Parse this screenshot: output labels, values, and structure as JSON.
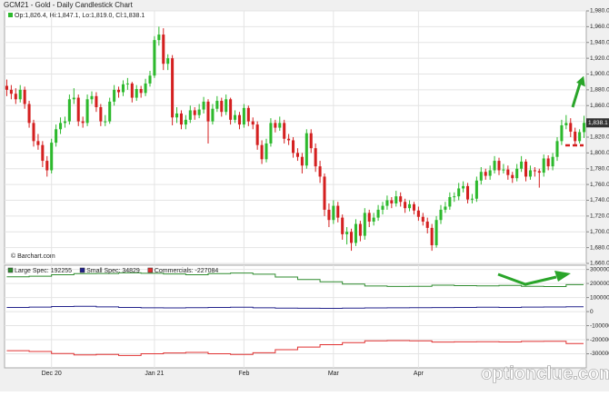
{
  "chart_data": [
    {
      "type": "candlestick",
      "title": "GCM21 - Gold - Daily Candlestick Chart",
      "subtitle": "Op:1,826.4, Hi:1,847.1, Lo:1,819.0, Cl:1,838.1",
      "source": "© Barchart.com",
      "watermark": "optionclue.com",
      "up_color": "#2db92d",
      "down_color": "#d42020",
      "last_label": {
        "value": 1838.1,
        "label": "1,838.1"
      },
      "xlim": [
        -0.5,
        129.5
      ],
      "xticks": [
        {
          "value": 10,
          "label": "Dec 20"
        },
        {
          "value": 33,
          "label": "Jan 21"
        },
        {
          "value": 53,
          "label": "Feb"
        },
        {
          "value": 73,
          "label": "Mar"
        },
        {
          "value": 92,
          "label": "Apr"
        }
      ],
      "ylim": [
        1660,
        1980
      ],
      "yticks": [
        {
          "value": 1660,
          "label": "1,660.0"
        },
        {
          "value": 1680,
          "label": "1,680.0"
        },
        {
          "value": 1700,
          "label": "1,700.0"
        },
        {
          "value": 1720,
          "label": "1,720.0"
        },
        {
          "value": 1740,
          "label": "1,740.0"
        },
        {
          "value": 1760,
          "label": "1,760.0"
        },
        {
          "value": 1780,
          "label": "1,780.0"
        },
        {
          "value": 1800,
          "label": "1,800.0"
        },
        {
          "value": 1820,
          "label": "1,820.0"
        },
        {
          "value": 1840,
          "label": "1,840.0"
        },
        {
          "value": 1860,
          "label": "1,860.0"
        },
        {
          "value": 1880,
          "label": "1,880.0"
        },
        {
          "value": 1900,
          "label": "1,900.0"
        },
        {
          "value": 1920,
          "label": "1,920.0"
        },
        {
          "value": 1940,
          "label": "1,940.0"
        },
        {
          "value": 1960,
          "label": "1,960.0"
        },
        {
          "value": 1980,
          "label": "1,980.0"
        }
      ],
      "grid": true,
      "ohlc": [
        [
          1885,
          1893,
          1872,
          1880
        ],
        [
          1880,
          1886,
          1868,
          1875
        ],
        [
          1875,
          1882,
          1862,
          1868
        ],
        [
          1868,
          1886,
          1864,
          1880
        ],
        [
          1880,
          1884,
          1856,
          1862
        ],
        [
          1862,
          1866,
          1832,
          1838
        ],
        [
          1838,
          1842,
          1808,
          1815
        ],
        [
          1815,
          1824,
          1804,
          1810
        ],
        [
          1810,
          1815,
          1782,
          1790
        ],
        [
          1790,
          1796,
          1770,
          1778
        ],
        [
          1778,
          1818,
          1774,
          1813
        ],
        [
          1813,
          1836,
          1808,
          1830
        ],
        [
          1830,
          1845,
          1824,
          1838
        ],
        [
          1838,
          1846,
          1832,
          1840
        ],
        [
          1840,
          1874,
          1836,
          1868
        ],
        [
          1868,
          1882,
          1862,
          1870
        ],
        [
          1870,
          1874,
          1834,
          1840
        ],
        [
          1840,
          1846,
          1832,
          1838
        ],
        [
          1838,
          1874,
          1834,
          1868
        ],
        [
          1868,
          1878,
          1862,
          1872
        ],
        [
          1872,
          1877,
          1852,
          1858
        ],
        [
          1858,
          1862,
          1834,
          1840
        ],
        [
          1840,
          1848,
          1834,
          1840
        ],
        [
          1840,
          1870,
          1837,
          1865
        ],
        [
          1865,
          1886,
          1860,
          1880
        ],
        [
          1880,
          1884,
          1870,
          1877
        ],
        [
          1877,
          1892,
          1872,
          1887
        ],
        [
          1887,
          1895,
          1880,
          1888
        ],
        [
          1888,
          1890,
          1864,
          1870
        ],
        [
          1870,
          1886,
          1866,
          1881
        ],
        [
          1881,
          1885,
          1870,
          1876
        ],
        [
          1876,
          1894,
          1872,
          1888
        ],
        [
          1888,
          1904,
          1884,
          1898
        ],
        [
          1898,
          1948,
          1895,
          1943
        ],
        [
          1943,
          1960,
          1936,
          1950
        ],
        [
          1950,
          1958,
          1905,
          1913
        ],
        [
          1913,
          1925,
          1905,
          1920
        ],
        [
          1920,
          1924,
          1835,
          1845
        ],
        [
          1845,
          1858,
          1838,
          1850
        ],
        [
          1850,
          1854,
          1830,
          1836
        ],
        [
          1836,
          1848,
          1830,
          1842
        ],
        [
          1842,
          1860,
          1838,
          1854
        ],
        [
          1854,
          1858,
          1842,
          1848
        ],
        [
          1848,
          1862,
          1844,
          1855
        ],
        [
          1855,
          1871,
          1850,
          1865
        ],
        [
          1865,
          1868,
          1812,
          1840
        ],
        [
          1840,
          1862,
          1836,
          1856
        ],
        [
          1856,
          1872,
          1852,
          1866
        ],
        [
          1866,
          1870,
          1846,
          1852
        ],
        [
          1852,
          1874,
          1848,
          1868
        ],
        [
          1868,
          1870,
          1836,
          1842
        ],
        [
          1842,
          1854,
          1838,
          1848
        ],
        [
          1848,
          1852,
          1830,
          1836
        ],
        [
          1836,
          1862,
          1832,
          1857
        ],
        [
          1857,
          1860,
          1834,
          1840
        ],
        [
          1840,
          1845,
          1830,
          1836
        ],
        [
          1836,
          1840,
          1804,
          1810
        ],
        [
          1810,
          1816,
          1786,
          1792
        ],
        [
          1792,
          1818,
          1788,
          1812
        ],
        [
          1812,
          1844,
          1808,
          1838
        ],
        [
          1838,
          1842,
          1826,
          1832
        ],
        [
          1832,
          1846,
          1828,
          1838
        ],
        [
          1838,
          1842,
          1812,
          1818
        ],
        [
          1818,
          1824,
          1810,
          1816
        ],
        [
          1816,
          1820,
          1794,
          1800
        ],
        [
          1800,
          1806,
          1790,
          1795
        ],
        [
          1795,
          1800,
          1774,
          1784
        ],
        [
          1784,
          1830,
          1780,
          1825
        ],
        [
          1825,
          1830,
          1800,
          1806
        ],
        [
          1806,
          1812,
          1776,
          1783
        ],
        [
          1783,
          1790,
          1762,
          1770
        ],
        [
          1770,
          1774,
          1720,
          1728
        ],
        [
          1728,
          1736,
          1706,
          1715
        ],
        [
          1715,
          1740,
          1710,
          1733
        ],
        [
          1733,
          1738,
          1712,
          1718
        ],
        [
          1718,
          1722,
          1690,
          1697
        ],
        [
          1697,
          1706,
          1684,
          1700
        ],
        [
          1700,
          1704,
          1676,
          1686
        ],
        [
          1686,
          1716,
          1682,
          1710
        ],
        [
          1710,
          1714,
          1688,
          1695
        ],
        [
          1695,
          1730,
          1690,
          1724
        ],
        [
          1724,
          1728,
          1706,
          1713
        ],
        [
          1713,
          1724,
          1708,
          1718
        ],
        [
          1718,
          1734,
          1714,
          1728
        ],
        [
          1728,
          1738,
          1722,
          1733
        ],
        [
          1733,
          1746,
          1728,
          1740
        ],
        [
          1740,
          1744,
          1730,
          1736
        ],
        [
          1736,
          1752,
          1732,
          1745
        ],
        [
          1745,
          1750,
          1732,
          1738
        ],
        [
          1738,
          1742,
          1724,
          1730
        ],
        [
          1730,
          1740,
          1726,
          1735
        ],
        [
          1735,
          1738,
          1722,
          1727
        ],
        [
          1727,
          1732,
          1714,
          1719
        ],
        [
          1719,
          1724,
          1708,
          1713
        ],
        [
          1713,
          1718,
          1698,
          1705
        ],
        [
          1705,
          1710,
          1676,
          1683
        ],
        [
          1683,
          1720,
          1680,
          1715
        ],
        [
          1715,
          1734,
          1710,
          1728
        ],
        [
          1728,
          1738,
          1724,
          1732
        ],
        [
          1732,
          1750,
          1728,
          1744
        ],
        [
          1744,
          1750,
          1738,
          1745
        ],
        [
          1745,
          1762,
          1740,
          1755
        ],
        [
          1755,
          1764,
          1750,
          1758
        ],
        [
          1758,
          1762,
          1736,
          1741
        ],
        [
          1741,
          1748,
          1736,
          1742
        ],
        [
          1742,
          1770,
          1738,
          1765
        ],
        [
          1765,
          1782,
          1760,
          1776
        ],
        [
          1776,
          1780,
          1766,
          1771
        ],
        [
          1771,
          1784,
          1766,
          1778
        ],
        [
          1778,
          1796,
          1774,
          1790
        ],
        [
          1790,
          1794,
          1772,
          1778
        ],
        [
          1778,
          1786,
          1774,
          1779
        ],
        [
          1779,
          1784,
          1766,
          1772
        ],
        [
          1772,
          1776,
          1762,
          1768
        ],
        [
          1768,
          1786,
          1764,
          1780
        ],
        [
          1780,
          1796,
          1776,
          1789
        ],
        [
          1789,
          1792,
          1764,
          1770
        ],
        [
          1770,
          1784,
          1766,
          1778
        ],
        [
          1778,
          1782,
          1770,
          1777
        ],
        [
          1777,
          1780,
          1756,
          1775
        ],
        [
          1775,
          1798,
          1770,
          1793
        ],
        [
          1793,
          1797,
          1778,
          1783
        ],
        [
          1783,
          1800,
          1778,
          1795
        ],
        [
          1795,
          1820,
          1790,
          1815
        ],
        [
          1815,
          1842,
          1810,
          1835
        ],
        [
          1835,
          1848,
          1830,
          1838
        ],
        [
          1838,
          1844,
          1820,
          1827
        ],
        [
          1827,
          1832,
          1810,
          1815
        ],
        [
          1815,
          1830,
          1812,
          1826.4
        ],
        [
          1826.4,
          1847.1,
          1819,
          1838.1
        ]
      ]
    },
    {
      "type": "step",
      "x": [
        0,
        5,
        10,
        15,
        20,
        25,
        30,
        35,
        40,
        45,
        50,
        55,
        60,
        65,
        70,
        75,
        80,
        85,
        90,
        95,
        100,
        105,
        110,
        115,
        120,
        125
      ],
      "xlim": [
        -0.5,
        129.5
      ],
      "ylim": [
        -400000,
        330000
      ],
      "yticks": [
        300000,
        200000,
        100000,
        0,
        -100000,
        -200000,
        -300000
      ],
      "series": [
        {
          "name": "Large Spec: 192255",
          "color": "#2e8b2e",
          "values": [
            248000,
            252000,
            262000,
            270000,
            271000,
            276000,
            273000,
            268000,
            262000,
            270000,
            274000,
            266000,
            246000,
            228000,
            212000,
            196000,
            182000,
            179000,
            180000,
            188000,
            185000,
            183000,
            186000,
            180000,
            178000,
            192255
          ]
        },
        {
          "name": "Small Spec: 34829",
          "color": "#22228b",
          "values": [
            30000,
            32000,
            36000,
            38000,
            34000,
            30000,
            27000,
            26000,
            28000,
            30000,
            31000,
            27000,
            25000,
            24000,
            23000,
            25000,
            26000,
            27000,
            28000,
            29000,
            30000,
            31000,
            30000,
            32000,
            33000,
            34829
          ]
        },
        {
          "name": "Commercials: -227084",
          "color": "#e03030",
          "values": [
            -278000,
            -284000,
            -298000,
            -308000,
            -305000,
            -312000,
            -300000,
            -294000,
            -290000,
            -300000,
            -305000,
            -293000,
            -271000,
            -252000,
            -235000,
            -221000,
            -208000,
            -206000,
            -208000,
            -217000,
            -215000,
            -214000,
            -216000,
            -212000,
            -211000,
            -227084
          ]
        }
      ]
    }
  ]
}
